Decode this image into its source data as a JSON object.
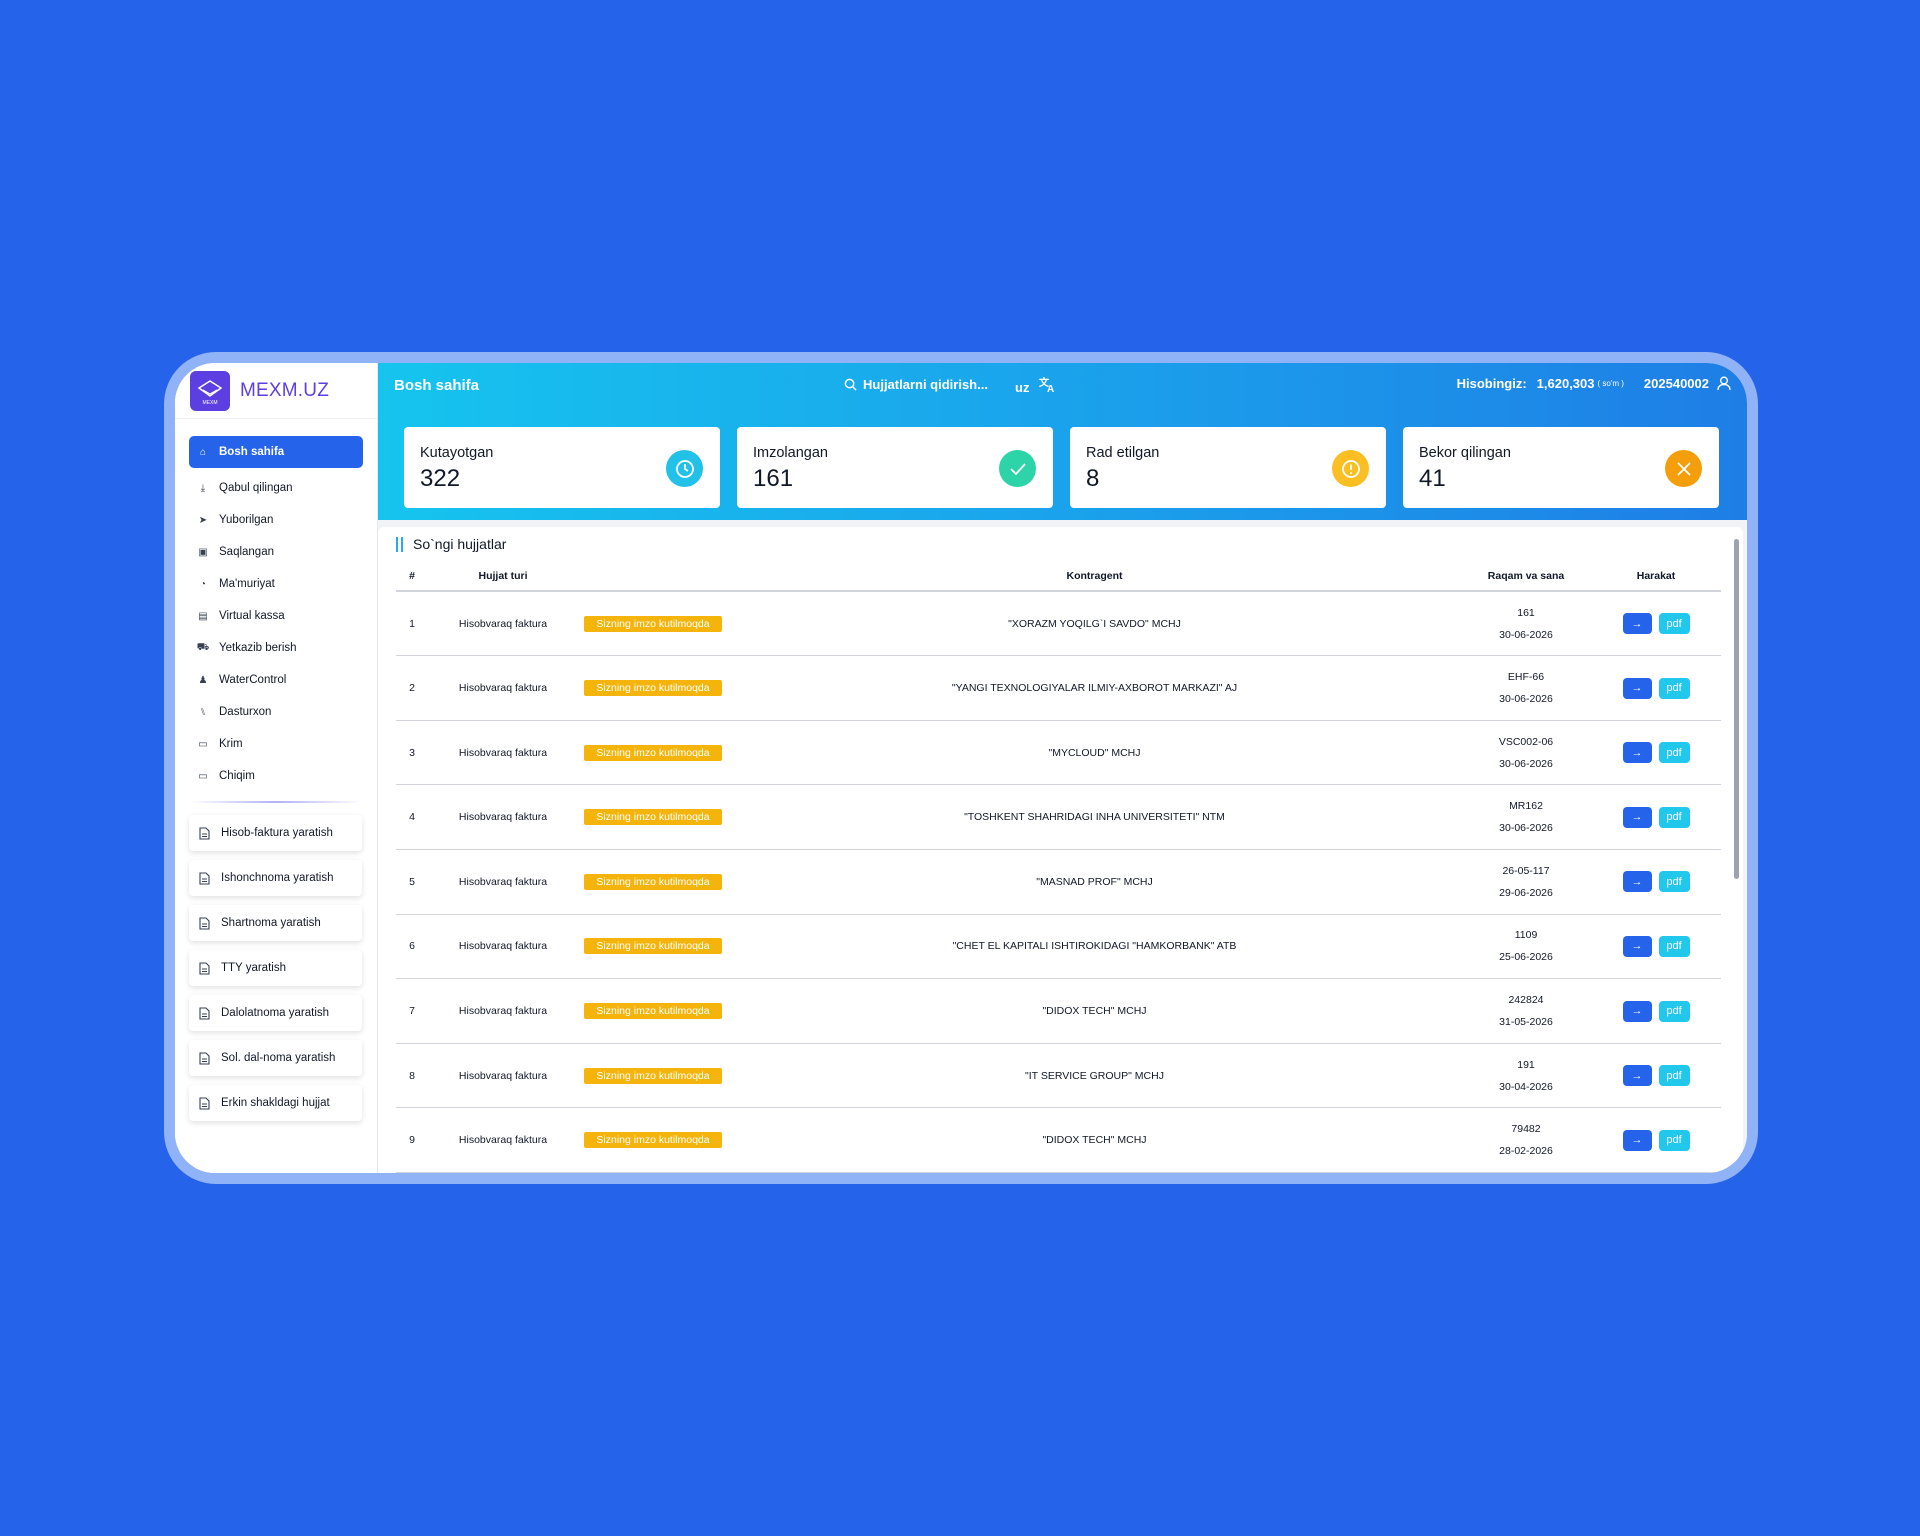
{
  "app": {
    "logo_text": "MEXM.UZ",
    "logo_mark_text": "MEXM"
  },
  "sidebar": {
    "items": [
      {
        "label": "Bosh sahifa",
        "icon": "home-icon"
      },
      {
        "label": "Qabul qilingan",
        "icon": "download-icon"
      },
      {
        "label": "Yuborilgan",
        "icon": "send-icon"
      },
      {
        "label": "Saqlangan",
        "icon": "save-icon"
      },
      {
        "label": "Ma'muriyat",
        "icon": "admin-icon"
      },
      {
        "label": "Virtual kassa",
        "icon": "register-icon"
      },
      {
        "label": "Yetkazib berish",
        "icon": "delivery-icon"
      },
      {
        "label": "WaterControl",
        "icon": "water-icon"
      },
      {
        "label": "Dasturxon",
        "icon": "cutlery-icon"
      },
      {
        "label": "Krim",
        "icon": "income-icon"
      },
      {
        "label": "Chiqim",
        "icon": "expense-icon"
      }
    ],
    "create": [
      {
        "label": "Hisob-faktura yaratish"
      },
      {
        "label": "Ishonchnoma yaratish"
      },
      {
        "label": "Shartnoma yaratish"
      },
      {
        "label": "TTY yaratish"
      },
      {
        "label": "Dalolatnoma yaratish"
      },
      {
        "label": "Sol. dal-noma yaratish"
      },
      {
        "label": "Erkin shakldagi hujjat"
      }
    ]
  },
  "header": {
    "title": "Bosh sahifa",
    "search_placeholder": "Hujjatlarni qidirish...",
    "lang": "uz",
    "balance_label": "Hisobingiz:",
    "balance_value": "1,620,303",
    "currency": "( so'm )",
    "account_id": "202540002"
  },
  "stats": [
    {
      "label": "Kutayotgan",
      "value": "322",
      "color": "#22c1e8",
      "icon": "clock-icon"
    },
    {
      "label": "Imzolangan",
      "value": "161",
      "color": "#2dd4a8",
      "icon": "check-icon"
    },
    {
      "label": "Rad etilgan",
      "value": "8",
      "color": "#fbbf24",
      "icon": "alert-icon"
    },
    {
      "label": "Bekor qilingan",
      "value": "41",
      "color": "#f59e0b",
      "icon": "close-icon"
    }
  ],
  "documents": {
    "title": "So`ngi hujjatlar",
    "columns": [
      "#",
      "Hujjat turi",
      "",
      "Kontragent",
      "Raqam va sana",
      "Harakat"
    ],
    "action_pdf": "pdf",
    "action_go": "→",
    "rows": [
      {
        "n": "1",
        "type": "Hisobvaraq faktura",
        "status": "Sizning imzo kutilmoqda",
        "kontragent": "\"XORAZM YOQILG`I SAVDO\" MCHJ",
        "number": "161",
        "date": "30-06-2026"
      },
      {
        "n": "2",
        "type": "Hisobvaraq faktura",
        "status": "Sizning imzo kutilmoqda",
        "kontragent": "\"YANGI TEXNOLOGIYALAR ILMIY-AXBOROT MARKAZI\" AJ",
        "number": "EHF-66",
        "date": "30-06-2026"
      },
      {
        "n": "3",
        "type": "Hisobvaraq faktura",
        "status": "Sizning imzo kutilmoqda",
        "kontragent": "\"MYCLOUD\" MCHJ",
        "number": "VSC002-06",
        "date": "30-06-2026"
      },
      {
        "n": "4",
        "type": "Hisobvaraq faktura",
        "status": "Sizning imzo kutilmoqda",
        "kontragent": "\"TOSHKENT SHAHRIDAGI INHA UNIVERSITETI\" NTM",
        "number": "MR162",
        "date": "30-06-2026"
      },
      {
        "n": "5",
        "type": "Hisobvaraq faktura",
        "status": "Sizning imzo kutilmoqda",
        "kontragent": "\"MASNAD PROF\" MCHJ",
        "number": "26-05-117",
        "date": "29-06-2026"
      },
      {
        "n": "6",
        "type": "Hisobvaraq faktura",
        "status": "Sizning imzo kutilmoqda",
        "kontragent": "\"CHET EL KAPITALI ISHTIROKIDAGI \"HAMKORBANK\" ATB",
        "number": "1109",
        "date": "25-06-2026"
      },
      {
        "n": "7",
        "type": "Hisobvaraq faktura",
        "status": "Sizning imzo kutilmoqda",
        "kontragent": "\"DIDOX TECH\" MCHJ",
        "number": "242824",
        "date": "31-05-2026"
      },
      {
        "n": "8",
        "type": "Hisobvaraq faktura",
        "status": "Sizning imzo kutilmoqda",
        "kontragent": "\"IT SERVICE GROUP\" MCHJ",
        "number": "191",
        "date": "30-04-2026"
      },
      {
        "n": "9",
        "type": "Hisobvaraq faktura",
        "status": "Sizning imzo kutilmoqda",
        "kontragent": "\"DIDOX TECH\" MCHJ",
        "number": "79482",
        "date": "28-02-2026"
      }
    ]
  },
  "colors": {
    "background": "#2563eb",
    "primary": "#2563eb",
    "badge": "#f4b40c",
    "pdf": "#22c7ec"
  }
}
